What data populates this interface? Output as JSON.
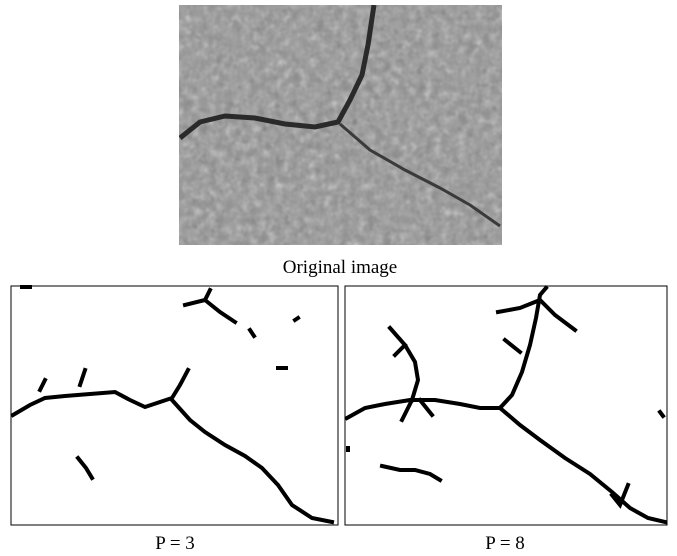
{
  "figure": {
    "panels": [
      {
        "caption": "Original image"
      },
      {
        "caption": "P = 3"
      },
      {
        "caption": "P = 8"
      }
    ]
  }
}
